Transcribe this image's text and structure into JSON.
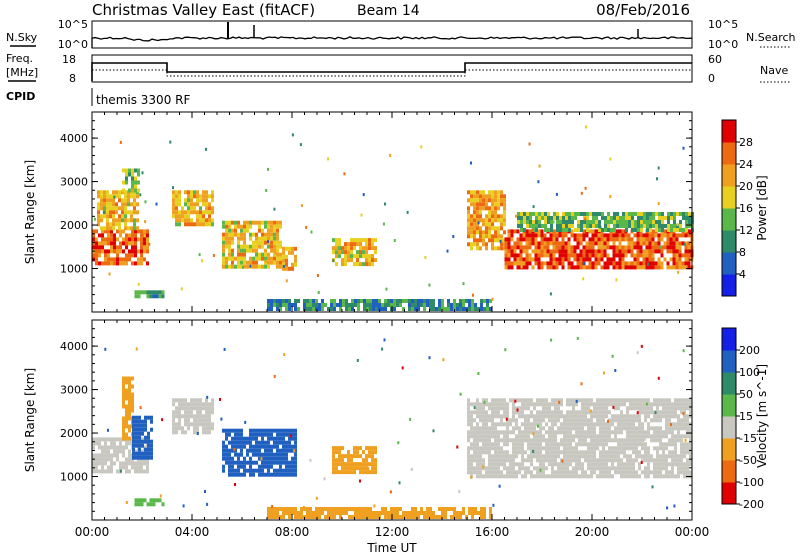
{
  "header": {
    "station": "Christmas Valley East (fitACF)",
    "beam": "Beam 14",
    "date": "08/Feb/2016"
  },
  "top_panels": {
    "nsky_label": "N.Sky",
    "nsky_ticks": [
      "10^5",
      "10^0"
    ],
    "nsearch_label": "N.Search",
    "nsearch_ticks": [
      "10^5",
      "10^0"
    ],
    "freq_label_1": "Freq.",
    "freq_label_2": "[MHz]",
    "freq_ticks": [
      "18",
      "8"
    ],
    "nave_label": "Nave",
    "nave_ticks": [
      "60",
      "0"
    ],
    "cpid_label": "CPID",
    "cpid_value": "themis 3300 RF"
  },
  "chart_data": [
    {
      "type": "heatmap",
      "title": "",
      "xlabel": "Time UT",
      "ylabel": "Slant Range [km]",
      "xticks": [
        "00:00",
        "04:00",
        "08:00",
        "12:00",
        "16:00",
        "20:00",
        "00:00"
      ],
      "xlim_hours": [
        0,
        24
      ],
      "ylim": [
        0,
        4600
      ],
      "yticks": [
        1000,
        2000,
        3000,
        4000
      ],
      "colorbar": {
        "label": "Power [dB]",
        "ticks": [
          "4",
          "8",
          "12",
          "16",
          "20",
          "24",
          "28"
        ],
        "colors": [
          "#1420e6",
          "#2060c0",
          "#2f8a6a",
          "#5ab84a",
          "#e8d020",
          "#f0a020",
          "#ee6a10",
          "#e00000"
        ]
      },
      "regions": [
        {
          "t0": 0.0,
          "t1": 2.2,
          "r0": 1100,
          "r1": 1900,
          "value": 26
        },
        {
          "t0": 0.2,
          "t1": 1.8,
          "r0": 1900,
          "r1": 2800,
          "value": 20
        },
        {
          "t0": 1.2,
          "t1": 1.9,
          "r0": 2800,
          "r1": 3300,
          "value": 16
        },
        {
          "t0": 3.2,
          "t1": 4.8,
          "r0": 2000,
          "r1": 2800,
          "value": 20
        },
        {
          "t0": 5.2,
          "t1": 7.6,
          "r0": 1000,
          "r1": 2100,
          "value": 20
        },
        {
          "t0": 7.6,
          "t1": 8.1,
          "r0": 1000,
          "r1": 1500,
          "value": 22
        },
        {
          "t0": 9.6,
          "t1": 11.3,
          "r0": 1100,
          "r1": 1700,
          "value": 20
        },
        {
          "t0": 15.0,
          "t1": 16.5,
          "r0": 1500,
          "r1": 2800,
          "value": 22
        },
        {
          "t0": 16.5,
          "t1": 24.0,
          "r0": 1000,
          "r1": 1900,
          "value": 27
        },
        {
          "t0": 17.0,
          "t1": 24.0,
          "r0": 1900,
          "r1": 2300,
          "value": 14
        },
        {
          "t0": 1.7,
          "t1": 2.8,
          "r0": 350,
          "r1": 500,
          "value": 12
        },
        {
          "t0": 7.0,
          "t1": 16.0,
          "r0": 50,
          "r1": 300,
          "value": 10
        }
      ]
    },
    {
      "type": "heatmap",
      "title": "",
      "xlabel": "Time UT",
      "ylabel": "Slant Range [km]",
      "xticks": [
        "00:00",
        "04:00",
        "08:00",
        "12:00",
        "16:00",
        "20:00",
        "00:00"
      ],
      "xlim_hours": [
        0,
        24
      ],
      "ylim": [
        0,
        4600
      ],
      "yticks": [
        1000,
        2000,
        3000,
        4000
      ],
      "colorbar": {
        "label": "Velocity [m s^-1]",
        "ticks": [
          "200",
          "100",
          "50",
          "15",
          "-15",
          "-50",
          "-100",
          "-200"
        ],
        "colors": [
          "#1420e6",
          "#2060c0",
          "#2f8a6a",
          "#5ab84a",
          "#c8c8c0",
          "#f0a020",
          "#ee6a10",
          "#e00000"
        ]
      },
      "regions": [
        {
          "t0": 0.0,
          "t1": 2.2,
          "r0": 1100,
          "r1": 1900,
          "value": 0
        },
        {
          "t0": 1.2,
          "t1": 1.6,
          "r0": 1900,
          "r1": 3300,
          "value": -40
        },
        {
          "t0": 1.6,
          "t1": 2.4,
          "r0": 1400,
          "r1": 2400,
          "value": 150
        },
        {
          "t0": 3.2,
          "t1": 4.8,
          "r0": 2000,
          "r1": 2800,
          "value": 0
        },
        {
          "t0": 5.2,
          "t1": 8.1,
          "r0": 1000,
          "r1": 2100,
          "value": 180
        },
        {
          "t0": 9.6,
          "t1": 11.3,
          "r0": 1100,
          "r1": 1700,
          "value": -40
        },
        {
          "t0": 15.0,
          "t1": 24.0,
          "r0": 1000,
          "r1": 2800,
          "value": 0
        },
        {
          "t0": 1.7,
          "t1": 2.8,
          "r0": 350,
          "r1": 500,
          "value": 30
        },
        {
          "t0": 7.0,
          "t1": 16.0,
          "r0": 50,
          "r1": 300,
          "value": -40
        }
      ]
    }
  ]
}
